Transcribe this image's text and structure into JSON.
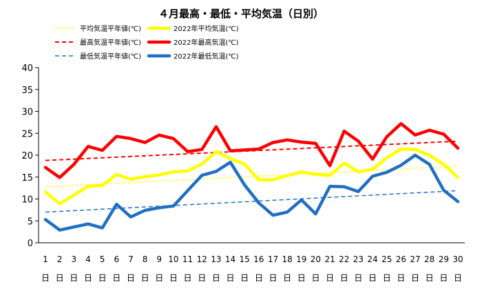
{
  "chart_data": {
    "type": "line",
    "title": "４月最高・最低・平均気温（日別）",
    "xlabel": "",
    "ylabel": "",
    "ylim": [
      0,
      40
    ],
    "yticks": [
      0,
      5,
      10,
      15,
      20,
      25,
      30,
      35,
      40
    ],
    "grid": "none",
    "legend_placement": "top",
    "day_suffix": "日",
    "x": [
      1,
      2,
      3,
      4,
      5,
      6,
      7,
      8,
      9,
      10,
      11,
      12,
      13,
      14,
      15,
      16,
      17,
      18,
      19,
      20,
      21,
      22,
      23,
      24,
      25,
      26,
      27,
      28,
      29,
      30
    ],
    "series": [
      {
        "name": "平均気温平年値(℃)",
        "color": "#ffff00",
        "style": "dotted",
        "trend_start": 12.8,
        "trend_end": 17.5
      },
      {
        "name": "2022年平均気温(℃)",
        "color": "#ffff00",
        "style": "solid",
        "values": [
          11.6,
          8.9,
          10.9,
          12.9,
          13.1,
          15.6,
          14.5,
          15.1,
          15.5,
          16.2,
          16.4,
          18.0,
          20.8,
          19.2,
          18.0,
          14.4,
          14.4,
          15.3,
          16.2,
          15.6,
          15.4,
          18.2,
          16.2,
          16.8,
          19.4,
          21.4,
          21.3,
          20.0,
          17.9,
          14.9
        ]
      },
      {
        "name": "最高気温平年値(℃)",
        "color": "#ff0000",
        "style": "dashed",
        "trend_start": 18.8,
        "trend_end": 23.2
      },
      {
        "name": "2022年最高気温(℃)",
        "color": "#ff0000",
        "style": "solid",
        "values": [
          17.2,
          14.9,
          17.9,
          22.0,
          21.1,
          24.3,
          23.8,
          22.9,
          24.6,
          23.8,
          20.8,
          21.3,
          26.5,
          21.0,
          21.2,
          21.4,
          22.9,
          23.5,
          23.0,
          22.7,
          17.6,
          25.5,
          23.2,
          19.1,
          24.2,
          27.2,
          24.6,
          25.7,
          24.8,
          21.6
        ]
      },
      {
        "name": "最低気温平年値(℃)",
        "color": "#1f6fc4",
        "style": "dashed",
        "trend_start": 7.0,
        "trend_end": 11.9
      },
      {
        "name": "2022年最低気温(℃)",
        "color": "#1f6fc4",
        "style": "solid",
        "values": [
          5.3,
          2.9,
          3.6,
          4.3,
          3.4,
          8.8,
          5.9,
          7.4,
          8.0,
          8.4,
          11.9,
          15.4,
          16.3,
          18.4,
          13.2,
          9.1,
          6.3,
          7.0,
          9.8,
          6.6,
          12.9,
          12.8,
          11.7,
          15.2,
          16.1,
          17.7,
          20.0,
          17.9,
          12.0,
          9.4
        ]
      }
    ]
  }
}
